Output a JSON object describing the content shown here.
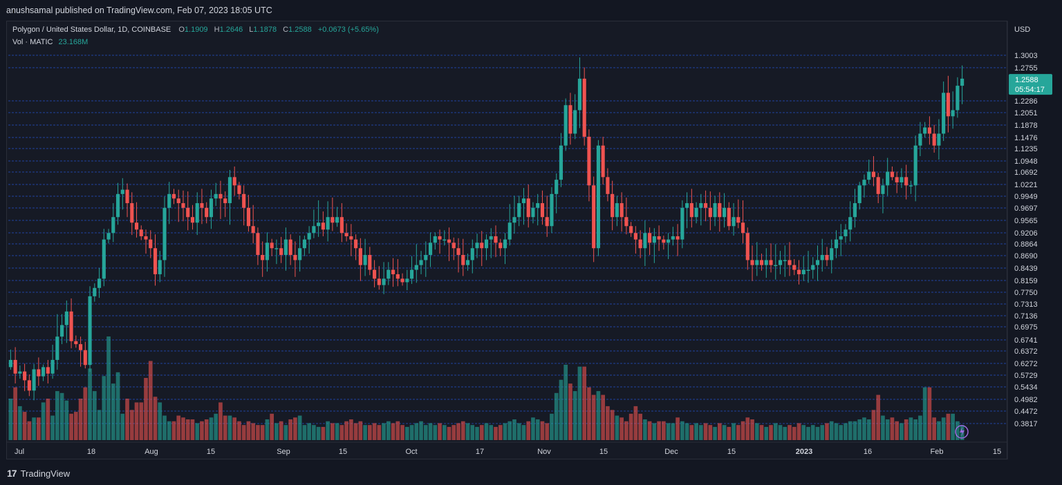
{
  "header": {
    "publisher": "anushsamal published on TradingView.com, Feb 07, 2023 18:05 UTC"
  },
  "legend": {
    "symbol": "Polygon / United States Dollar, 1D, COINBASE",
    "o_label": "O",
    "o": "1.1909",
    "h_label": "H",
    "h": "1.2646",
    "l_label": "L",
    "l": "1.1878",
    "c_label": "C",
    "c": "1.2588",
    "change": "+0.0673 (+5.65%)",
    "vol_label": "Vol · MATIC",
    "vol": "23.168M"
  },
  "currency": "USD",
  "footer": {
    "brand": "TradingView"
  },
  "colors": {
    "up": "#26a69a",
    "down": "#ef5350",
    "bg": "#161a25",
    "grid": "#2962ff",
    "text": "#d1d4dc"
  },
  "chart_data": {
    "type": "candlestick",
    "title": "Polygon / United States Dollar, 1D, COINBASE",
    "x_labels": [
      "Jul",
      "18",
      "Aug",
      "15",
      "Sep",
      "15",
      "Oct",
      "17",
      "Nov",
      "15",
      "Dec",
      "15",
      "2023",
      "16",
      "Feb",
      "15"
    ],
    "price_ticks": [
      "1.3003",
      "1.2755",
      "1.2286",
      "1.2051",
      "1.1878",
      "1.1476",
      "1.1235",
      "1.0948",
      "1.0692",
      "1.0221",
      "0.9949",
      "0.9697",
      "0.9565",
      "0.9206",
      "0.8864",
      "0.8690",
      "0.8439",
      "0.8159",
      "0.7750",
      "0.7313",
      "0.7136",
      "0.6975",
      "0.6741",
      "0.6372",
      "0.6272",
      "0.5729",
      "0.5434",
      "0.4982",
      "0.4472",
      "0.3817"
    ],
    "horizontal_levels": [
      1.3003,
      1.2755,
      1.2286,
      1.2051,
      1.1878,
      1.1476,
      1.1235,
      1.0948,
      1.0692,
      1.0221,
      0.9949,
      0.9697,
      0.9565,
      0.9206,
      0.8864,
      0.869,
      0.8439,
      0.8159,
      0.775,
      0.7313,
      0.7136,
      0.6975,
      0.6741,
      0.6372,
      0.6272,
      0.5729,
      0.5434,
      0.4982,
      0.4472,
      0.3817
    ],
    "last_price": {
      "price": "1.2588",
      "countdown": "05:54:17"
    },
    "close_series": [
      0.63,
      0.58,
      0.59,
      0.56,
      0.53,
      0.6,
      0.57,
      0.61,
      0.58,
      0.63,
      0.68,
      0.7,
      0.72,
      0.67,
      0.66,
      0.64,
      0.62,
      0.76,
      0.79,
      0.82,
      0.9,
      0.92,
      0.96,
      1.0,
      1.01,
      0.98,
      0.95,
      0.93,
      0.91,
      0.9,
      0.88,
      0.83,
      0.86,
      0.97,
      1.0,
      0.99,
      0.98,
      0.97,
      0.96,
      0.95,
      0.98,
      0.97,
      0.96,
      0.99,
      1.0,
      0.99,
      0.98,
      1.05,
      1.02,
      1.0,
      0.97,
      0.94,
      0.92,
      0.87,
      0.86,
      0.89,
      0.88,
      0.88,
      0.87,
      0.9,
      0.87,
      0.86,
      0.88,
      0.9,
      0.92,
      0.94,
      0.95,
      0.93,
      0.96,
      0.95,
      0.96,
      0.92,
      0.91,
      0.9,
      0.88,
      0.85,
      0.87,
      0.84,
      0.82,
      0.8,
      0.82,
      0.84,
      0.83,
      0.82,
      0.81,
      0.82,
      0.84,
      0.85,
      0.86,
      0.87,
      0.89,
      0.91,
      0.9,
      0.9,
      0.89,
      0.88,
      0.87,
      0.85,
      0.86,
      0.88,
      0.89,
      0.88,
      0.9,
      0.91,
      0.89,
      0.88,
      0.9,
      0.95,
      0.96,
      0.98,
      0.99,
      0.96,
      0.97,
      0.98,
      0.96,
      0.94,
      1.0,
      1.04,
      1.13,
      1.22,
      1.16,
      1.21,
      1.26,
      1.15,
      1.02,
      0.88,
      1.13,
      1.05,
      1.0,
      0.96,
      0.98,
      0.96,
      0.94,
      0.92,
      0.9,
      0.88,
      0.92,
      0.89,
      0.91,
      0.9,
      0.89,
      0.9,
      0.91,
      0.9,
      0.97,
      0.98,
      0.96,
      0.97,
      0.98,
      0.97,
      0.96,
      0.98,
      0.96,
      0.97,
      0.94,
      0.96,
      0.95,
      0.92,
      0.86,
      0.85,
      0.86,
      0.85,
      0.86,
      0.85,
      0.85,
      0.86,
      0.86,
      0.85,
      0.84,
      0.83,
      0.84,
      0.84,
      0.85,
      0.86,
      0.87,
      0.86,
      0.88,
      0.9,
      0.91,
      0.93,
      0.96,
      0.98,
      1.02,
      1.04,
      1.07,
      1.05,
      1.0,
      1.02,
      1.07,
      1.05,
      1.03,
      1.05,
      1.02,
      1.02,
      1.13,
      1.16,
      1.18,
      1.16,
      1.13,
      1.16,
      1.24,
      1.2,
      1.21,
      1.25,
      1.26
    ],
    "volume_series": [
      0.22,
      0.28,
      0.18,
      0.15,
      0.1,
      0.12,
      0.12,
      0.2,
      0.22,
      0.13,
      0.26,
      0.25,
      0.21,
      0.14,
      0.15,
      0.22,
      0.28,
      0.38,
      0.26,
      0.16,
      0.34,
      0.55,
      0.3,
      0.36,
      0.14,
      0.22,
      0.16,
      0.2,
      0.2,
      0.33,
      0.42,
      0.23,
      0.2,
      0.13,
      0.1,
      0.1,
      0.13,
      0.12,
      0.11,
      0.11,
      0.09,
      0.1,
      0.11,
      0.12,
      0.14,
      0.2,
      0.13,
      0.13,
      0.12,
      0.1,
      0.08,
      0.1,
      0.09,
      0.08,
      0.08,
      0.11,
      0.14,
      0.09,
      0.1,
      0.08,
      0.11,
      0.12,
      0.13,
      0.08,
      0.09,
      0.08,
      0.07,
      0.07,
      0.1,
      0.09,
      0.09,
      0.08,
      0.1,
      0.11,
      0.09,
      0.1,
      0.08,
      0.08,
      0.09,
      0.08,
      0.09,
      0.1,
      0.09,
      0.1,
      0.08,
      0.07,
      0.08,
      0.09,
      0.1,
      0.08,
      0.09,
      0.08,
      0.09,
      0.08,
      0.07,
      0.08,
      0.09,
      0.1,
      0.09,
      0.08,
      0.07,
      0.08,
      0.09,
      0.08,
      0.07,
      0.08,
      0.09,
      0.1,
      0.11,
      0.09,
      0.08,
      0.1,
      0.12,
      0.11,
      0.1,
      0.09,
      0.14,
      0.25,
      0.32,
      0.4,
      0.3,
      0.26,
      0.39,
      0.39,
      0.28,
      0.24,
      0.26,
      0.24,
      0.18,
      0.16,
      0.13,
      0.12,
      0.1,
      0.14,
      0.18,
      0.14,
      0.11,
      0.1,
      0.09,
      0.1,
      0.1,
      0.09,
      0.09,
      0.12,
      0.1,
      0.09,
      0.08,
      0.09,
      0.08,
      0.09,
      0.08,
      0.07,
      0.09,
      0.08,
      0.07,
      0.09,
      0.08,
      0.1,
      0.12,
      0.11,
      0.09,
      0.08,
      0.07,
      0.08,
      0.09,
      0.08,
      0.07,
      0.08,
      0.07,
      0.09,
      0.08,
      0.07,
      0.08,
      0.07,
      0.08,
      0.09,
      0.1,
      0.09,
      0.08,
      0.09,
      0.1,
      0.1,
      0.11,
      0.12,
      0.11,
      0.16,
      0.24,
      0.13,
      0.11,
      0.12,
      0.1,
      0.09,
      0.11,
      0.12,
      0.11,
      0.13,
      0.28,
      0.28,
      0.12,
      0.1,
      0.12,
      0.14,
      0.14,
      0.1,
      0.08,
      0.06
    ],
    "date_range": {
      "start": "Jul 2022",
      "end": "Feb 2023"
    }
  }
}
